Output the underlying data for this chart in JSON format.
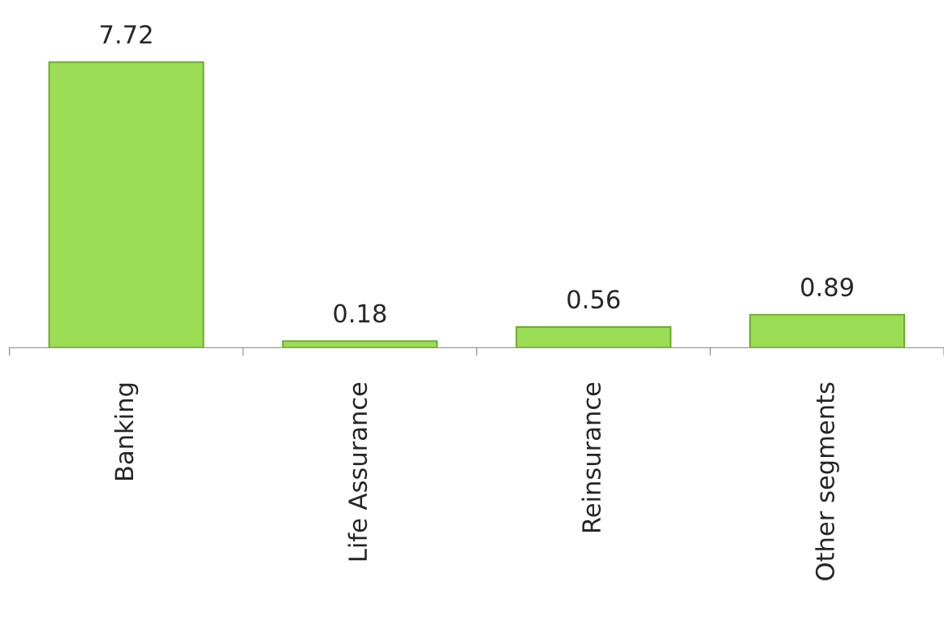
{
  "chart_data": {
    "type": "bar",
    "categories": [
      "Banking",
      "Life Assurance",
      "Reinsurance",
      "Other segments"
    ],
    "values": [
      7.72,
      0.18,
      0.56,
      0.89
    ],
    "color": "#9bde55",
    "data_labels": true,
    "grid": false,
    "legend": false
  }
}
